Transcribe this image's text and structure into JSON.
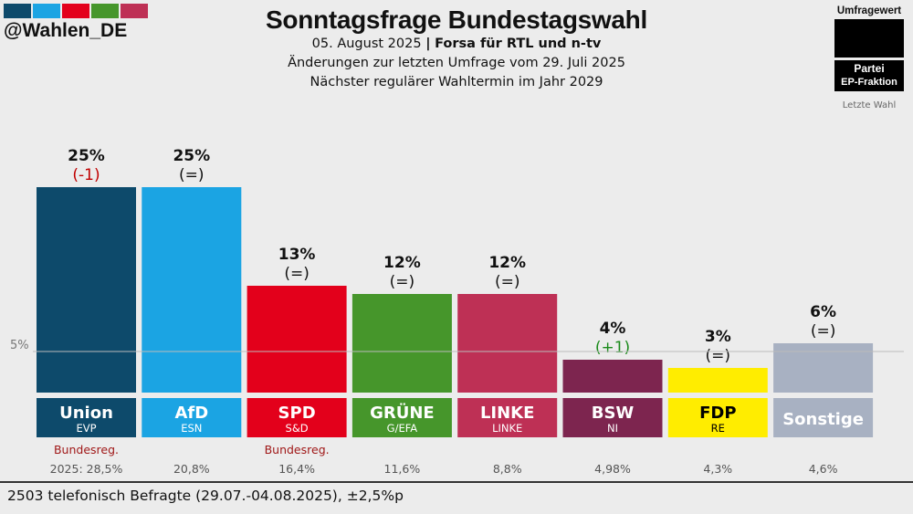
{
  "brand": {
    "handle": "@Wahlen_DE",
    "stripe_colors": [
      "#0d4a6b",
      "#1ba4e3",
      "#e3001b",
      "#46962b",
      "#be3055"
    ]
  },
  "header": {
    "title": "Sonntagsfrage Bundestagswahl",
    "date": "05. August 2025",
    "separator": "|",
    "institute": "Forsa für RTL und n-tv",
    "changes_note": "Änderungen zur letzten Umfrage vom 29. Juli 2025",
    "next_election": "Nächster regulärer Wahltermin im Jahr 2029"
  },
  "legend": {
    "poll_value_label": "Umfragewert",
    "party_label": "Partei",
    "group_label": "EP-Fraktion",
    "last_election_label": "Letzte Wahl"
  },
  "footer": {
    "note": "2503 telefonisch Befragte (29.07.-04.08.2025), ±2,5%p"
  },
  "chart_data": {
    "type": "bar",
    "title": "Sonntagsfrage Bundestagswahl",
    "ylim": [
      0,
      25
    ],
    "threshold": {
      "value": 5,
      "label": "5%"
    },
    "categories": [
      "Union",
      "AfD",
      "SPD",
      "GRÜNE",
      "LINKE",
      "BSW",
      "FDP",
      "Sonstige"
    ],
    "groups": [
      "EVP",
      "ESN",
      "S&D",
      "G/EFA",
      "LINKE",
      "NI",
      "RE",
      ""
    ],
    "values": [
      25,
      25,
      13,
      12,
      12,
      4,
      3,
      6
    ],
    "value_labels": [
      "25%",
      "25%",
      "13%",
      "12%",
      "12%",
      "4%",
      "3%",
      "6%"
    ],
    "changes": [
      "(-1)",
      "(=)",
      "(=)",
      "(=)",
      "(=)",
      "(+1)",
      "(=)",
      "(=)"
    ],
    "change_colors": [
      "#c00000",
      "#111111",
      "#111111",
      "#111111",
      "#111111",
      "#1a8a1a",
      "#111111",
      "#111111"
    ],
    "colors": [
      "#0d4a6b",
      "#1ba4e3",
      "#e3001b",
      "#46962b",
      "#be3055",
      "#7d254f",
      "#ffed00",
      "#a8b1c2"
    ],
    "label_text_colors": [
      "#ffffff",
      "#ffffff",
      "#ffffff",
      "#ffffff",
      "#ffffff",
      "#ffffff",
      "#000000",
      "#ffffff"
    ],
    "government_notes": [
      "Bundesreg.",
      "",
      "Bundesreg.",
      "",
      "",
      "",
      "",
      ""
    ],
    "last_election": [
      "2025: 28,5%",
      "20,8%",
      "16,4%",
      "11,6%",
      "8,8%",
      "4,98%",
      "4,3%",
      "4,6%"
    ]
  }
}
